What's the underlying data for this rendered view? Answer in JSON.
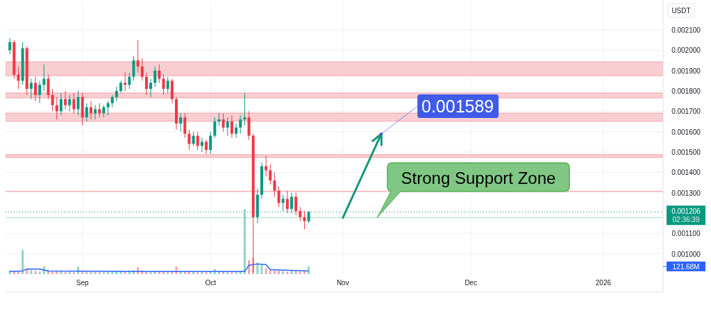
{
  "chart_data": {
    "type": "candlestick",
    "ylabel": "USDT",
    "x": [
      "2025-08-15",
      "2025-08-16",
      "2025-08-17",
      "2025-08-18",
      "2025-08-19",
      "2025-08-20",
      "2025-08-21",
      "2025-08-22",
      "2025-08-23",
      "2025-08-24",
      "2025-08-25",
      "2025-08-26",
      "2025-08-27",
      "2025-08-28",
      "2025-08-29",
      "2025-08-30",
      "2025-08-31",
      "2025-09-01",
      "2025-09-02",
      "2025-09-03",
      "2025-09-04",
      "2025-09-05",
      "2025-09-06",
      "2025-09-07",
      "2025-09-08",
      "2025-09-09",
      "2025-09-10",
      "2025-09-11",
      "2025-09-12",
      "2025-09-13",
      "2025-09-14",
      "2025-09-15",
      "2025-09-16",
      "2025-09-17",
      "2025-09-18",
      "2025-09-19",
      "2025-09-20",
      "2025-09-21",
      "2025-09-22",
      "2025-09-23",
      "2025-09-24",
      "2025-09-25",
      "2025-09-26",
      "2025-09-27",
      "2025-09-28",
      "2025-09-29",
      "2025-09-30",
      "2025-10-01",
      "2025-10-02",
      "2025-10-03",
      "2025-10-04",
      "2025-10-05",
      "2025-10-06",
      "2025-10-07",
      "2025-10-08",
      "2025-10-09",
      "2025-10-10",
      "2025-10-11",
      "2025-10-12",
      "2025-10-13",
      "2025-10-14",
      "2025-10-15",
      "2025-10-16",
      "2025-10-17",
      "2025-10-18",
      "2025-10-19",
      "2025-10-20",
      "2025-10-21",
      "2025-10-22",
      "2025-10-23",
      "2025-10-24"
    ],
    "ohlc": [
      [
        0.002,
        0.00206,
        0.00198,
        0.00204
      ],
      [
        0.00204,
        0.00205,
        0.00186,
        0.00188
      ],
      [
        0.00188,
        0.00192,
        0.00181,
        0.00185
      ],
      [
        0.00185,
        0.00204,
        0.00183,
        0.00201
      ],
      [
        0.00201,
        0.00202,
        0.00178,
        0.00181
      ],
      [
        0.00181,
        0.00186,
        0.00176,
        0.00184
      ],
      [
        0.00184,
        0.00187,
        0.00175,
        0.00178
      ],
      [
        0.00178,
        0.00185,
        0.00174,
        0.00183
      ],
      [
        0.00183,
        0.00193,
        0.0018,
        0.00186
      ],
      [
        0.00186,
        0.00188,
        0.00176,
        0.00178
      ],
      [
        0.00178,
        0.00181,
        0.0017,
        0.00173
      ],
      [
        0.00173,
        0.00177,
        0.00166,
        0.0017
      ],
      [
        0.0017,
        0.00179,
        0.00168,
        0.00176
      ],
      [
        0.00176,
        0.0018,
        0.00171,
        0.00173
      ],
      [
        0.00173,
        0.00178,
        0.0017,
        0.00176
      ],
      [
        0.00176,
        0.00179,
        0.00169,
        0.00171
      ],
      [
        0.00171,
        0.0018,
        0.00168,
        0.00177
      ],
      [
        0.00177,
        0.00179,
        0.00163,
        0.00167
      ],
      [
        0.00167,
        0.00174,
        0.00165,
        0.00172
      ],
      [
        0.00172,
        0.00175,
        0.00166,
        0.00169
      ],
      [
        0.00169,
        0.00173,
        0.00166,
        0.00171
      ],
      [
        0.00171,
        0.00174,
        0.00167,
        0.00169
      ],
      [
        0.00169,
        0.00173,
        0.00167,
        0.00172
      ],
      [
        0.00172,
        0.00175,
        0.00168,
        0.00174
      ],
      [
        0.00174,
        0.00178,
        0.00172,
        0.00177
      ],
      [
        0.00177,
        0.00182,
        0.00175,
        0.0018
      ],
      [
        0.0018,
        0.00185,
        0.00179,
        0.00184
      ],
      [
        0.00184,
        0.00189,
        0.0018,
        0.00183
      ],
      [
        0.00183,
        0.00189,
        0.00181,
        0.00187
      ],
      [
        0.00187,
        0.00197,
        0.00185,
        0.00195
      ],
      [
        0.00195,
        0.00205,
        0.00189,
        0.00192
      ],
      [
        0.00192,
        0.00196,
        0.00185,
        0.00187
      ],
      [
        0.00187,
        0.00189,
        0.00178,
        0.00181
      ],
      [
        0.00181,
        0.00186,
        0.00177,
        0.00184
      ],
      [
        0.00184,
        0.00192,
        0.00182,
        0.0019
      ],
      [
        0.0019,
        0.00193,
        0.00184,
        0.00186
      ],
      [
        0.00186,
        0.00188,
        0.00178,
        0.00181
      ],
      [
        0.00181,
        0.00187,
        0.00179,
        0.00185
      ],
      [
        0.00185,
        0.00186,
        0.00174,
        0.00176
      ],
      [
        0.00176,
        0.00177,
        0.00161,
        0.00164
      ],
      [
        0.00164,
        0.00169,
        0.0016,
        0.00167
      ],
      [
        0.00167,
        0.00169,
        0.00157,
        0.00159
      ],
      [
        0.00159,
        0.00161,
        0.00151,
        0.00154
      ],
      [
        0.00154,
        0.0016,
        0.00153,
        0.00158
      ],
      [
        0.00158,
        0.0016,
        0.00151,
        0.00153
      ],
      [
        0.00153,
        0.00157,
        0.0015,
        0.00155
      ],
      [
        0.00155,
        0.00156,
        0.00149,
        0.00151
      ],
      [
        0.00151,
        0.0016,
        0.00149,
        0.00158
      ],
      [
        0.00158,
        0.00167,
        0.00157,
        0.00165
      ],
      [
        0.00165,
        0.00169,
        0.00163,
        0.00166
      ],
      [
        0.00166,
        0.00169,
        0.0016,
        0.00162
      ],
      [
        0.00162,
        0.00167,
        0.00158,
        0.00165
      ],
      [
        0.00165,
        0.00168,
        0.00157,
        0.00159
      ],
      [
        0.00159,
        0.00164,
        0.00157,
        0.00162
      ],
      [
        0.00162,
        0.00168,
        0.00159,
        0.00166
      ],
      [
        0.00166,
        0.00179,
        0.00163,
        0.00167
      ],
      [
        0.00167,
        0.0017,
        0.00156,
        0.00158
      ],
      [
        0.00158,
        0.00159,
        0.00091,
        0.00118
      ],
      [
        0.00118,
        0.00132,
        0.00115,
        0.00129
      ],
      [
        0.00129,
        0.00145,
        0.00127,
        0.00143
      ],
      [
        0.00143,
        0.00148,
        0.00138,
        0.00141
      ],
      [
        0.00141,
        0.00144,
        0.00134,
        0.00136
      ],
      [
        0.00136,
        0.0014,
        0.00128,
        0.00131
      ],
      [
        0.00131,
        0.00133,
        0.00123,
        0.00125
      ],
      [
        0.00125,
        0.00129,
        0.00121,
        0.00127
      ],
      [
        0.00127,
        0.00131,
        0.0012,
        0.00122
      ],
      [
        0.00122,
        0.0013,
        0.0012,
        0.00128
      ],
      [
        0.00128,
        0.0013,
        0.00119,
        0.00121
      ],
      [
        0.00121,
        0.00123,
        0.00116,
        0.00118
      ],
      [
        0.00118,
        0.00121,
        0.00112,
        0.00116
      ],
      [
        0.00116,
        0.00121,
        0.00115,
        0.001206
      ]
    ],
    "colors": [
      "#089981",
      "#f23645",
      "#f23645",
      "#089981",
      "#f23645",
      "#089981",
      "#f23645",
      "#089981",
      "#089981",
      "#f23645",
      "#f23645",
      "#f23645",
      "#089981",
      "#f23645",
      "#089981",
      "#f23645",
      "#089981",
      "#f23645",
      "#089981",
      "#f23645",
      "#089981",
      "#f23645",
      "#089981",
      "#089981",
      "#089981",
      "#089981",
      "#089981",
      "#f23645",
      "#089981",
      "#089981",
      "#f23645",
      "#f23645",
      "#f23645",
      "#089981",
      "#089981",
      "#f23645",
      "#f23645",
      "#089981",
      "#f23645",
      "#f23645",
      "#089981",
      "#f23645",
      "#f23645",
      "#089981",
      "#f23645",
      "#089981",
      "#f23645",
      "#089981",
      "#089981",
      "#089981",
      "#f23645",
      "#089981",
      "#f23645",
      "#089981",
      "#089981",
      "#089981",
      "#f23645",
      "#f23645",
      "#089981",
      "#089981",
      "#f23645",
      "#f23645",
      "#f23645",
      "#f23645",
      "#089981",
      "#f23645",
      "#089981",
      "#f23645",
      "#f23645",
      "#f23645",
      "#089981"
    ],
    "series": [
      {
        "type": "bar",
        "axis": "y2",
        "values": [
          60,
          50,
          40,
          380,
          90,
          60,
          50,
          40,
          120,
          60,
          40,
          50,
          40,
          30,
          40,
          30,
          110,
          50,
          30,
          30,
          40,
          30,
          30,
          40,
          40,
          50,
          50,
          40,
          50,
          60,
          110,
          60,
          40,
          40,
          50,
          50,
          40,
          50,
          50,
          120,
          50,
          40,
          50,
          40,
          30,
          40,
          30,
          50,
          80,
          50,
          40,
          30,
          50,
          40,
          50,
          1020,
          220,
          260,
          180,
          150,
          90,
          70,
          60,
          60,
          50,
          40,
          50,
          50,
          40,
          60,
          121.68
        ],
        "colors": [
          "#8fd3c9",
          "#f8a5ab",
          "#f8a5ab",
          "#8fd3c9",
          "#f8a5ab",
          "#8fd3c9",
          "#f8a5ab",
          "#8fd3c9",
          "#8fd3c9",
          "#f8a5ab",
          "#f8a5ab",
          "#f8a5ab",
          "#8fd3c9",
          "#f8a5ab",
          "#8fd3c9",
          "#f8a5ab",
          "#8fd3c9",
          "#f8a5ab",
          "#8fd3c9",
          "#f8a5ab",
          "#8fd3c9",
          "#f8a5ab",
          "#8fd3c9",
          "#8fd3c9",
          "#8fd3c9",
          "#8fd3c9",
          "#8fd3c9",
          "#f8a5ab",
          "#8fd3c9",
          "#8fd3c9",
          "#f8a5ab",
          "#f8a5ab",
          "#f8a5ab",
          "#8fd3c9",
          "#8fd3c9",
          "#f8a5ab",
          "#f8a5ab",
          "#8fd3c9",
          "#f8a5ab",
          "#f8a5ab",
          "#8fd3c9",
          "#f8a5ab",
          "#f8a5ab",
          "#8fd3c9",
          "#f8a5ab",
          "#8fd3c9",
          "#f8a5ab",
          "#8fd3c9",
          "#8fd3c9",
          "#8fd3c9",
          "#f8a5ab",
          "#8fd3c9",
          "#f8a5ab",
          "#8fd3c9",
          "#8fd3c9",
          "#8fd3c9",
          "#f8a5ab",
          "#f8a5ab",
          "#8fd3c9",
          "#8fd3c9",
          "#f8a5ab",
          "#f8a5ab",
          "#f8a5ab",
          "#f8a5ab",
          "#8fd3c9",
          "#f8a5ab",
          "#8fd3c9",
          "#f8a5ab",
          "#f8a5ab",
          "#f8a5ab",
          "#8fd3c9"
        ]
      },
      {
        "type": "line",
        "axis": "y2",
        "color": "#2962ff",
        "x": [
          "2025-08-15",
          "2025-08-18",
          "2025-08-19",
          "2025-08-22",
          "2025-08-24",
          "2025-09-15",
          "2025-10-09",
          "2025-10-10",
          "2025-10-12",
          "2025-10-14",
          "2025-10-15",
          "2025-10-24"
        ],
        "values": [
          40,
          50,
          80,
          80,
          50,
          40,
          40,
          140,
          160,
          150,
          70,
          50
        ]
      }
    ],
    "xlim": [
      "2025-08-14",
      "2026-01-15"
    ],
    "xticks": [
      {
        "value": "2025-09-01",
        "label": "Sep"
      },
      {
        "value": "2025-10-01",
        "label": "Oct"
      },
      {
        "value": "2025-11-01",
        "label": "Nov"
      },
      {
        "value": "2025-12-01",
        "label": "Dec"
      },
      {
        "value": "2026-01-01",
        "label": "2026"
      }
    ],
    "ylim": [
      0.0009,
      0.00224
    ],
    "yticks": [
      {
        "value": 0.001,
        "label": "0.001000"
      },
      {
        "value": 0.0011,
        "label": "0.001100"
      },
      {
        "value": 0.0012,
        "label": null
      },
      {
        "value": 0.0013,
        "label": "0.001300"
      },
      {
        "value": 0.0014,
        "label": "0.001400"
      },
      {
        "value": 0.0015,
        "label": "0.001500"
      },
      {
        "value": 0.0016,
        "label": "0.001600"
      },
      {
        "value": 0.0017,
        "label": "0.001700"
      },
      {
        "value": 0.0018,
        "label": "0.001800"
      },
      {
        "value": 0.0019,
        "label": "0.001900"
      },
      {
        "value": 0.002,
        "label": "0.002000"
      },
      {
        "value": 0.0021,
        "label": "0.002100"
      }
    ],
    "y2lim": [
      0,
      4300
    ],
    "y2ticks": [
      {
        "value": 121.68,
        "label": "121.68M"
      }
    ],
    "grid": true,
    "bands": [
      {
        "axis": "y",
        "from": 0.001875,
        "to": 0.001943,
        "color": "#f7c5c9"
      },
      {
        "axis": "y",
        "from": 0.001766,
        "to": 0.00179,
        "color": "#f7c5c9"
      },
      {
        "axis": "y",
        "from": 0.001651,
        "to": 0.001691,
        "color": "#f7c5c9"
      },
      {
        "axis": "y",
        "from": 0.001473,
        "to": 0.001487,
        "color": "#f7c5c9"
      }
    ],
    "ref_lines": [
      {
        "axis": "y",
        "value": 0.001307,
        "color": "#f7a1a8"
      },
      {
        "axis": "y",
        "value": 0.001177,
        "color": "#9fe0c3"
      },
      {
        "axis": "y",
        "value": 0.001206,
        "label": "0.001206",
        "color": "#089981",
        "line_style": "dotted"
      }
    ],
    "annotations": [
      "0.001589",
      {
        "text": "Strong Support Zone",
        "x": "2025-11-09",
        "y": 0.001177
      },
      "02:36:39"
    ]
  }
}
